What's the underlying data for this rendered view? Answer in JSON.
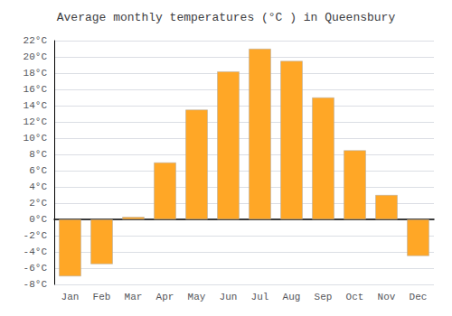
{
  "chart_data": {
    "type": "bar",
    "title": "Average monthly temperatures (°C ) in Queensbury",
    "categories": [
      "Jan",
      "Feb",
      "Mar",
      "Apr",
      "May",
      "Jun",
      "Jul",
      "Aug",
      "Sep",
      "Oct",
      "Nov",
      "Dec"
    ],
    "values": [
      -7.0,
      -5.5,
      0.3,
      7.0,
      13.5,
      18.2,
      21.0,
      19.5,
      15.0,
      8.5,
      3.0,
      -4.5
    ],
    "color": "#FFA726",
    "ylim": [
      -8,
      22
    ],
    "yticks": [
      {
        "value": -8,
        "label": "-8°C"
      },
      {
        "value": -6,
        "label": "-6°C"
      },
      {
        "value": -4,
        "label": "-4°C"
      },
      {
        "value": -2,
        "label": "-2°C"
      },
      {
        "value": 0,
        "label": "0°C"
      },
      {
        "value": 2,
        "label": "2°C"
      },
      {
        "value": 4,
        "label": "4°C"
      },
      {
        "value": 6,
        "label": "6°C"
      },
      {
        "value": 8,
        "label": "8°C"
      },
      {
        "value": 10,
        "label": "10°C"
      },
      {
        "value": 12,
        "label": "12°C"
      },
      {
        "value": 14,
        "label": "14°C"
      },
      {
        "value": 16,
        "label": "16°C"
      },
      {
        "value": 18,
        "label": "18°C"
      },
      {
        "value": 20,
        "label": "20°C"
      },
      {
        "value": 22,
        "label": "22°C"
      }
    ],
    "grid": true
  }
}
